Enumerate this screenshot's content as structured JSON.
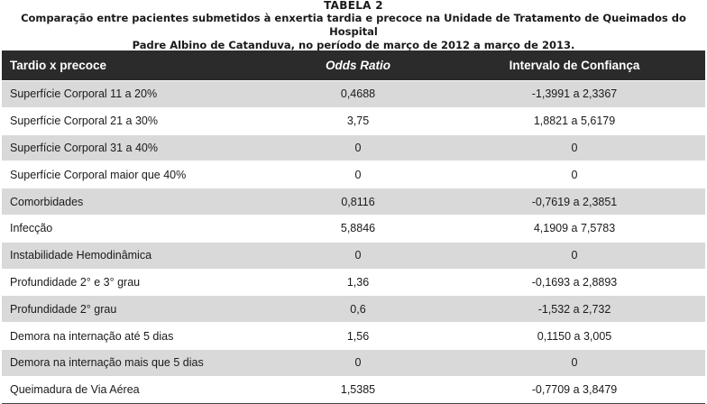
{
  "caption": {
    "table_label": "TABELA 2",
    "line1": "Comparação entre pacientes submetidos à enxertia tardia e precoce na Unidade de Tratamento de Queimados do Hospital",
    "line2": "Padre Albino de Catanduva, no período de março de 2012 a março de 2013."
  },
  "table": {
    "headers": {
      "factor": "Tardio x precoce",
      "odds_ratio": "Odds Ratio",
      "ci": "Intervalo de Confiança"
    },
    "rows": [
      {
        "factor": "Superfície Corporal 11 a 20%",
        "odds_ratio": "0,4688",
        "ci": "-1,3991 a 2,3367"
      },
      {
        "factor": "Superfície Corporal 21 a 30%",
        "odds_ratio": "3,75",
        "ci": "1,8821 a 5,6179"
      },
      {
        "factor": "Superfície Corporal 31 a 40%",
        "odds_ratio": "0",
        "ci": "0"
      },
      {
        "factor": "Superfície Corporal maior que 40%",
        "odds_ratio": "0",
        "ci": "0"
      },
      {
        "factor": "Comorbidades",
        "odds_ratio": "0,8116",
        "ci": "-0,7619 a 2,3851"
      },
      {
        "factor": "Infecção",
        "odds_ratio": "5,8846",
        "ci": "4,1909 a 7,5783"
      },
      {
        "factor": "Instabilidade Hemodinâmica",
        "odds_ratio": "0",
        "ci": "0"
      },
      {
        "factor": "Profundidade 2° e 3° grau",
        "odds_ratio": "1,36",
        "ci": "-0,1693 a 2,8893"
      },
      {
        "factor": "Profundidade 2° grau",
        "odds_ratio": "0,6",
        "ci": "-1,532 a 2,732"
      },
      {
        "factor": "Demora na internação até 5 dias",
        "odds_ratio": "1,56",
        "ci": "0,1150 a 3,005"
      },
      {
        "factor": "Demora na internação mais que 5 dias",
        "odds_ratio": "0",
        "ci": "0"
      },
      {
        "factor": "Queimadura de Via Aérea",
        "odds_ratio": "1,5385",
        "ci": "-0,7709 a 3,8479"
      }
    ]
  }
}
